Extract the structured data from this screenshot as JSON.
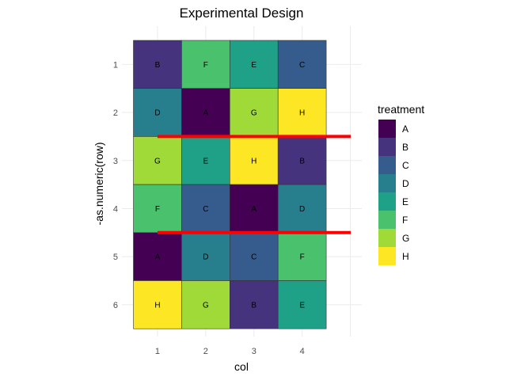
{
  "chart_data": {
    "type": "heatmap",
    "title": "Experimental Design",
    "xlabel": "col",
    "ylabel": "-as.numeric(row)",
    "x_ticks": [
      "1",
      "2",
      "3",
      "4"
    ],
    "y_ticks": [
      "1",
      "2",
      "3",
      "4",
      "5",
      "6"
    ],
    "grid": true,
    "legend": {
      "title": "treatment",
      "position": "right",
      "entries": [
        {
          "label": "A",
          "color": "#440154"
        },
        {
          "label": "B",
          "color": "#46337E"
        },
        {
          "label": "C",
          "color": "#365C8D"
        },
        {
          "label": "D",
          "color": "#277F8E"
        },
        {
          "label": "E",
          "color": "#1FA187"
        },
        {
          "label": "F",
          "color": "#4AC16D"
        },
        {
          "label": "G",
          "color": "#A0DA39"
        },
        {
          "label": "H",
          "color": "#FDE725"
        }
      ]
    },
    "cells": [
      {
        "row": 1,
        "col": 1,
        "treatment": "B"
      },
      {
        "row": 1,
        "col": 2,
        "treatment": "F"
      },
      {
        "row": 1,
        "col": 3,
        "treatment": "E"
      },
      {
        "row": 1,
        "col": 4,
        "treatment": "C"
      },
      {
        "row": 2,
        "col": 1,
        "treatment": "D"
      },
      {
        "row": 2,
        "col": 2,
        "treatment": "A"
      },
      {
        "row": 2,
        "col": 3,
        "treatment": "G"
      },
      {
        "row": 2,
        "col": 4,
        "treatment": "H"
      },
      {
        "row": 3,
        "col": 1,
        "treatment": "G"
      },
      {
        "row": 3,
        "col": 2,
        "treatment": "E"
      },
      {
        "row": 3,
        "col": 3,
        "treatment": "H"
      },
      {
        "row": 3,
        "col": 4,
        "treatment": "B"
      },
      {
        "row": 4,
        "col": 1,
        "treatment": "F"
      },
      {
        "row": 4,
        "col": 2,
        "treatment": "C"
      },
      {
        "row": 4,
        "col": 3,
        "treatment": "A"
      },
      {
        "row": 4,
        "col": 4,
        "treatment": "D"
      },
      {
        "row": 5,
        "col": 1,
        "treatment": "A"
      },
      {
        "row": 5,
        "col": 2,
        "treatment": "D"
      },
      {
        "row": 5,
        "col": 3,
        "treatment": "C"
      },
      {
        "row": 5,
        "col": 4,
        "treatment": "F"
      },
      {
        "row": 6,
        "col": 1,
        "treatment": "H"
      },
      {
        "row": 6,
        "col": 2,
        "treatment": "G"
      },
      {
        "row": 6,
        "col": 3,
        "treatment": "B"
      },
      {
        "row": 6,
        "col": 4,
        "treatment": "E"
      }
    ],
    "block_lines": [
      {
        "y": 2.5,
        "x_from": 1,
        "x_to": 5.5,
        "color": "#FF0000"
      },
      {
        "y": 4.5,
        "x_from": 1,
        "x_to": 5.5,
        "color": "#FF0000"
      }
    ]
  }
}
